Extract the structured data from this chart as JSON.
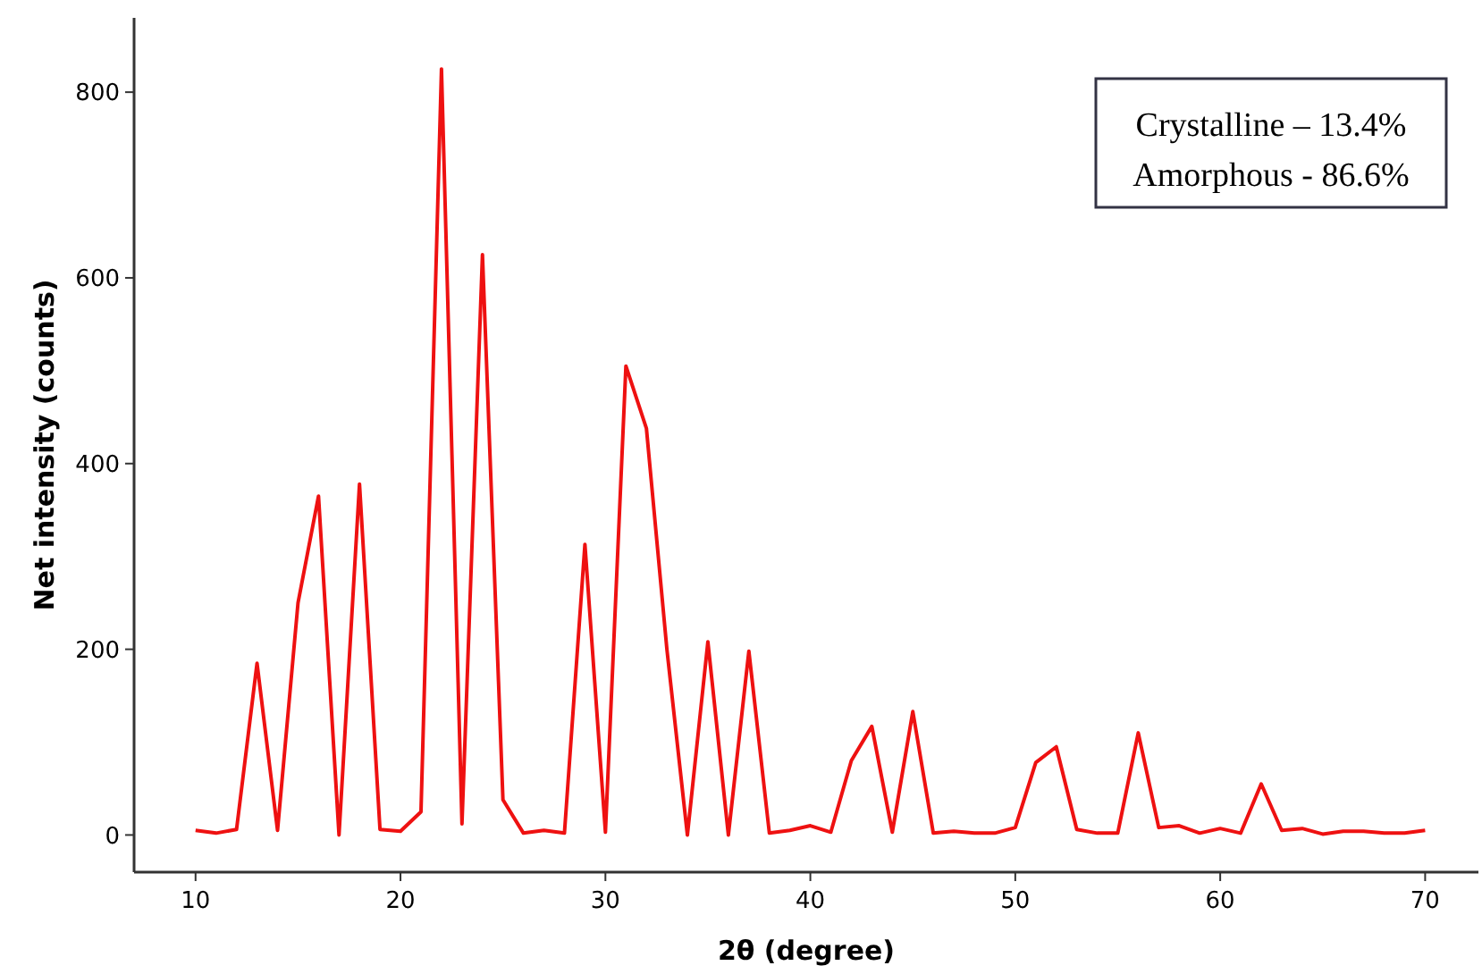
{
  "chart_data": {
    "type": "line",
    "xlabel": "2θ (degree)",
    "ylabel": "Net intensity (counts)",
    "x": [
      10,
      11,
      12,
      13,
      14,
      15,
      16,
      17,
      18,
      19,
      20,
      21,
      22,
      23,
      24,
      25,
      26,
      27,
      28,
      29,
      30,
      31,
      32,
      33,
      34,
      35,
      36,
      37,
      38,
      39,
      40,
      41,
      42,
      43,
      44,
      45,
      46,
      47,
      48,
      49,
      50,
      51,
      52,
      53,
      54,
      55,
      56,
      57,
      58,
      59,
      60,
      61,
      62,
      63,
      64,
      65,
      66,
      67,
      68,
      69,
      70
    ],
    "series": [
      {
        "color": "#ee1111",
        "values": [
          5,
          2,
          6,
          185,
          5,
          250,
          365,
          0,
          378,
          6,
          4,
          25,
          825,
          12,
          625,
          38,
          2,
          5,
          2,
          313,
          3,
          505,
          438,
          200,
          0,
          208,
          0,
          198,
          2,
          5,
          10,
          3,
          80,
          117,
          3,
          133,
          2,
          4,
          2,
          2,
          8,
          78,
          95,
          6,
          2,
          2,
          110,
          8,
          10,
          2,
          7,
          2,
          55,
          5,
          7,
          1,
          4,
          4,
          2,
          2,
          5
        ]
      }
    ],
    "xlim": [
      7,
      72.6
    ],
    "ylim": [
      -40,
      880
    ],
    "xticks": [
      10,
      20,
      30,
      40,
      50,
      60,
      70
    ],
    "yticks": [
      0,
      200,
      400,
      600,
      800
    ],
    "marker": "none",
    "line_style": "solid",
    "annotations": [
      "Crystalline – 13.4%",
      "Amorphous - 86.6%"
    ]
  }
}
